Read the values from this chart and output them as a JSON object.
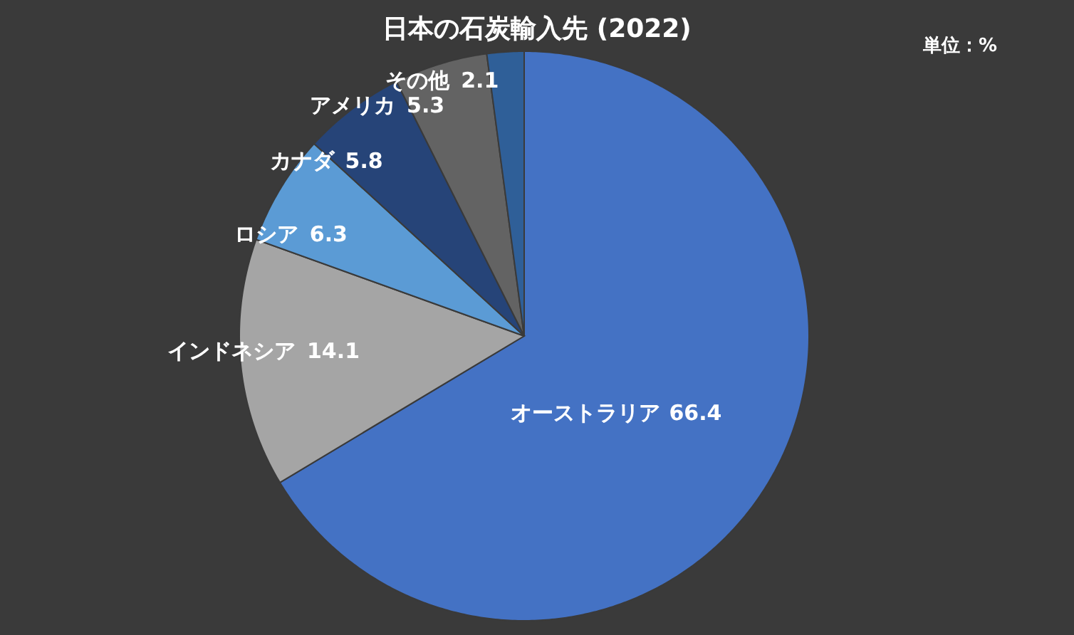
{
  "chart_data": {
    "type": "pie",
    "title": "日本の石炭輸入先 (2022)",
    "annotations": [
      "単位：%"
    ],
    "categories": [
      "オーストラリア",
      "インドネシア",
      "ロシア",
      "カナダ",
      "アメリカ",
      "その他"
    ],
    "values": [
      66.4,
      14.1,
      6.3,
      5.8,
      5.3,
      2.1
    ],
    "colors": [
      "#4472c4",
      "#a5a5a5",
      "#5b9bd5",
      "#264478",
      "#636363",
      "#2f5f98"
    ],
    "data_labels": true
  }
}
